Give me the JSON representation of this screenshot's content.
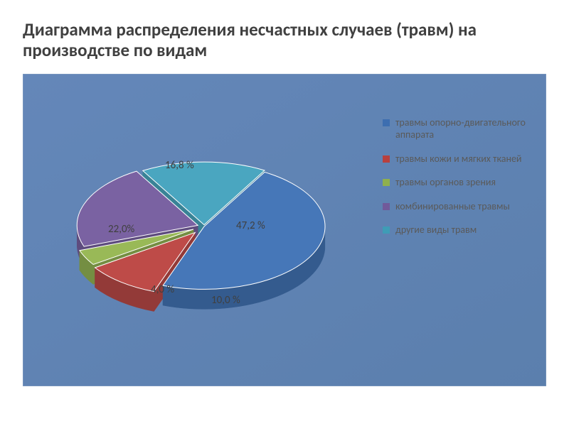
{
  "title": "Диаграмма распределения несчастных случаев (травм) на производстве по видам",
  "title_fontsize": 25,
  "chart": {
    "type": "pie",
    "background_color": "#ffffff",
    "plot_area_fill": "#6487b9",
    "plot_area_fill_alt": "#5b7fad",
    "plot_border_color": "#8aa3c4",
    "depth": 28,
    "tilt": 0.52,
    "rotation_start_deg": -60,
    "explode": [
      0,
      0.22,
      0.18,
      0.1,
      0.05
    ],
    "slices": [
      {
        "name": "травмы опорно-двигательного аппарата",
        "value": 47.2,
        "label": "47,2 %",
        "color": "#4677b8",
        "side_color": "#345b8e",
        "marker": "#3d6eb0"
      },
      {
        "name": "травмы кожи и мягких тканей",
        "value": 10.0,
        "label": "10,0 %",
        "color": "#be4b48",
        "side_color": "#933a38",
        "marker": "#b8403e"
      },
      {
        "name": "травмы органов зрения",
        "value": 4.0,
        "label": "4,0 %",
        "color": "#99b957",
        "side_color": "#748e42",
        "marker": "#8fb04d"
      },
      {
        "name": "комбинированные травмы",
        "value": 22.0,
        "label": "22,0%",
        "color": "#7a62a2",
        "side_color": "#5e4c7e",
        "marker": "#715a9a"
      },
      {
        "name": "другие виды травм",
        "value": 16.8,
        "label": "16,8 %",
        "color": "#4aa6c0",
        "side_color": "#398396",
        "marker": "#3f9cb6"
      }
    ],
    "label_fontsize": 15,
    "label_color": "#404040",
    "legend_fontsize": 14,
    "legend_color": "#5a5a5a"
  }
}
